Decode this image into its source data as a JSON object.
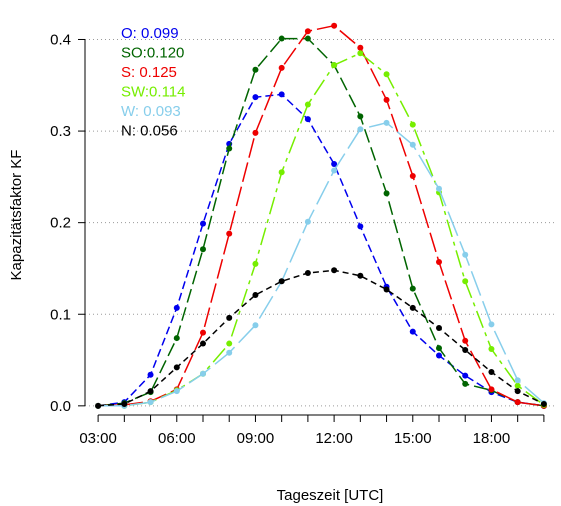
{
  "chart_data": {
    "type": "line",
    "title": "",
    "xlabel": "Tageszeit [UTC]",
    "ylabel": "Kapazitätsfaktor KF",
    "xlim": [
      2.5,
      20.5
    ],
    "ylim": [
      -0.01,
      0.43
    ],
    "x": [
      3,
      4,
      5,
      6,
      7,
      8,
      9,
      10,
      11,
      12,
      13,
      14,
      15,
      16,
      17,
      18,
      19,
      20
    ],
    "x_ticks": [
      3,
      6,
      9,
      12,
      15,
      18
    ],
    "x_tick_labels": [
      "03:00",
      "06:00",
      "09:00",
      "12:00",
      "15:00",
      "18:00"
    ],
    "y_ticks": [
      0.0,
      0.1,
      0.2,
      0.3,
      0.4
    ],
    "y_tick_labels": [
      "0.0",
      "0.1",
      "0.2",
      "0.3",
      "0.4"
    ],
    "grid": "horizontal-dotted",
    "legend_position": "top-left",
    "legend": [
      {
        "text": "O: 0.099",
        "color": "#0000ee"
      },
      {
        "text": "SO:0.120",
        "color": "#006400"
      },
      {
        "text": "S: 0.125",
        "color": "#ee0000"
      },
      {
        "text": "SW:0.114",
        "color": "#76ee00"
      },
      {
        "text": "W: 0.093",
        "color": "#87ceeb"
      },
      {
        "text": "N: 0.056",
        "color": "#000000"
      }
    ],
    "series": [
      {
        "color": "#0000ee",
        "dash": "8,4",
        "values": [
          0.0,
          0.004,
          0.034,
          0.107,
          0.199,
          0.286,
          0.337,
          0.34,
          0.313,
          0.264,
          0.196,
          0.13,
          0.081,
          0.055,
          0.033,
          0.015,
          0.004,
          0.0
        ]
      },
      {
        "color": "#006400",
        "dash": "14,5",
        "values": [
          0.0,
          0.003,
          0.015,
          0.074,
          0.171,
          0.281,
          0.367,
          0.401,
          0.401,
          0.372,
          0.316,
          0.232,
          0.128,
          0.063,
          0.024,
          0.017,
          0.004,
          0.0
        ]
      },
      {
        "color": "#ee0000",
        "dash": "20,5",
        "values": [
          0.0,
          0.001,
          0.005,
          0.018,
          0.08,
          0.188,
          0.298,
          0.369,
          0.409,
          0.415,
          0.391,
          0.334,
          0.251,
          0.157,
          0.071,
          0.018,
          0.004,
          0.0
        ]
      },
      {
        "color": "#76ee00",
        "dash": "18,5,4,5",
        "values": [
          0.0,
          0.0,
          0.004,
          0.017,
          0.035,
          0.068,
          0.155,
          0.255,
          0.329,
          0.372,
          0.385,
          0.362,
          0.307,
          0.233,
          0.136,
          0.062,
          0.022,
          0.001
        ]
      },
      {
        "color": "#87ceeb",
        "dash": "26,6",
        "values": [
          0.0,
          0.0,
          0.004,
          0.016,
          0.035,
          0.058,
          0.088,
          0.136,
          0.201,
          0.257,
          0.302,
          0.309,
          0.285,
          0.237,
          0.165,
          0.089,
          0.028,
          0.003
        ]
      },
      {
        "color": "#000000",
        "dash": "6,4",
        "values": [
          0.0,
          0.002,
          0.016,
          0.042,
          0.068,
          0.096,
          0.121,
          0.136,
          0.145,
          0.148,
          0.142,
          0.127,
          0.107,
          0.085,
          0.061,
          0.037,
          0.016,
          0.002
        ]
      }
    ]
  }
}
